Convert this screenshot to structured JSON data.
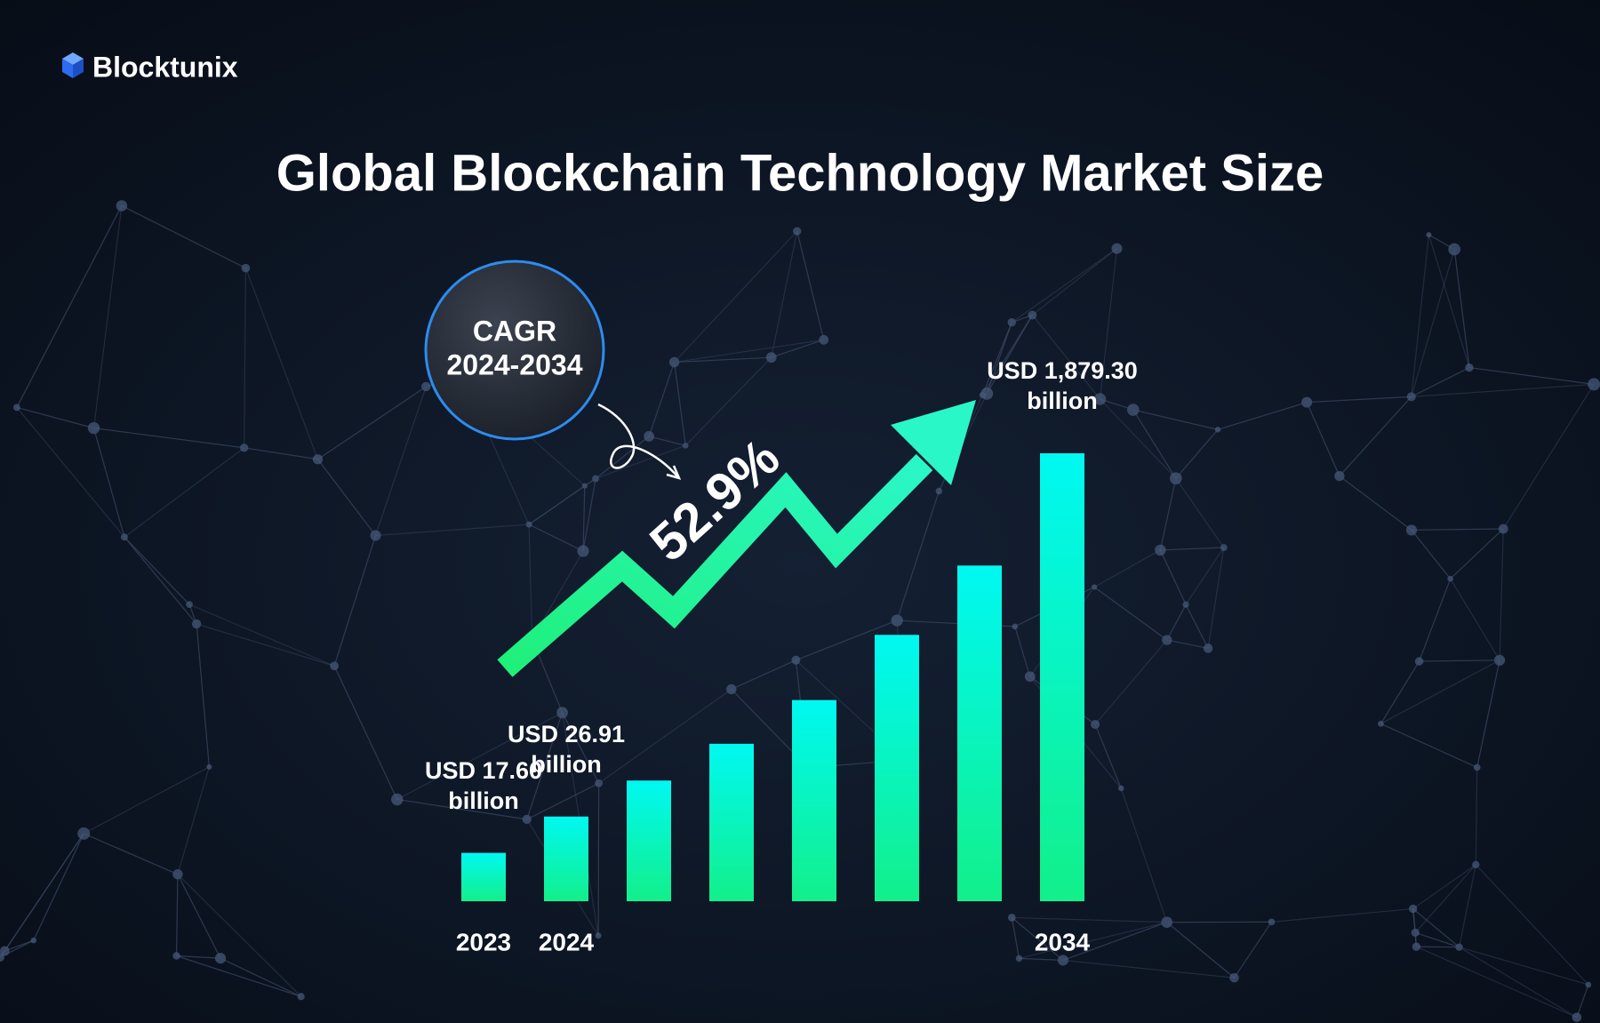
{
  "brand": "Blocktunix",
  "chart_data": {
    "type": "bar",
    "title": "Global Blockchain Technology Market Size",
    "categories": [
      "2023",
      "2024",
      null,
      null,
      null,
      null,
      null,
      "2034"
    ],
    "values": [
      17.6,
      26.91,
      41,
      63,
      105,
      225,
      506,
      1879.3
    ],
    "value_labels": [
      "USD 17.60 billion",
      "USD 26.91 billion",
      null,
      null,
      null,
      null,
      null,
      "USD 1,879.30 billion"
    ],
    "log_scale": true,
    "ylim": [
      10,
      2000
    ],
    "color_top": "#00f8f2",
    "color_bottom": "#12f08a",
    "annotations": {
      "cagr_title": "CAGR",
      "cagr_period": "2024-2034",
      "cagr_value": "52.9%"
    }
  }
}
